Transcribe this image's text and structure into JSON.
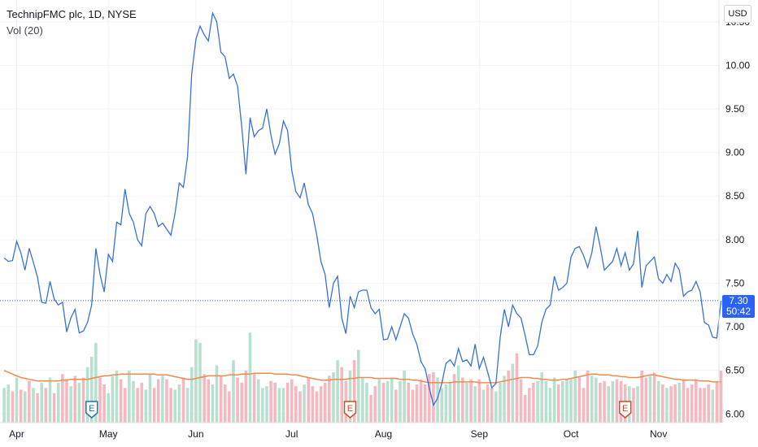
{
  "header": {
    "symbol_title": "TechnipFMC plc, 1D, NYSE",
    "volume_title": "Vol (20)",
    "currency": "USD"
  },
  "last_price": {
    "value": "7.30",
    "countdown": "50:42"
  },
  "colors": {
    "line": "#3a70d6",
    "volume_up": "#b8e0cf",
    "volume_down": "#f5b8c0",
    "volume_ma": "#f08a4b",
    "last_price": "#2962ff",
    "earnings_blue": "#1a73a8",
    "earnings_red": "#c94a2c"
  },
  "chart_data": {
    "type": "line",
    "title": "TechnipFMC plc, 1D, NYSE",
    "xlabel": "",
    "ylabel": "",
    "ylim": [
      5.9,
      10.75
    ],
    "y_ticks": [
      "10.50",
      "10.00",
      "9.50",
      "9.00",
      "8.50",
      "8.00",
      "7.50",
      "7.00",
      "6.50",
      "6.00"
    ],
    "x_ticks": [
      {
        "label": "Apr",
        "index": 3
      },
      {
        "label": "May",
        "index": 25
      },
      {
        "label": "Jun",
        "index": 46
      },
      {
        "label": "Jul",
        "index": 69
      },
      {
        "label": "Aug",
        "index": 91
      },
      {
        "label": "Sep",
        "index": 114
      },
      {
        "label": "Oct",
        "index": 136
      },
      {
        "label": "Nov",
        "index": 157
      }
    ],
    "x_range": [
      -1,
      171.5
    ],
    "series": [
      {
        "values": [
          7.79,
          7.75,
          7.76,
          7.98,
          7.85,
          7.65,
          7.9,
          7.74,
          7.57,
          7.28,
          7.27,
          7.52,
          7.32,
          7.25,
          7.28,
          6.94,
          7.1,
          7.2,
          6.93,
          6.95,
          7.05,
          7.25,
          7.9,
          7.6,
          7.4,
          7.83,
          7.75,
          8.2,
          8.17,
          8.58,
          8.3,
          8.2,
          8.0,
          7.93,
          8.3,
          8.38,
          8.3,
          8.15,
          8.19,
          8.12,
          8.05,
          8.3,
          8.65,
          8.6,
          8.95,
          9.9,
          10.3,
          10.45,
          10.35,
          10.28,
          10.6,
          10.5,
          10.15,
          10.1,
          9.85,
          9.9,
          9.76,
          9.3,
          8.75,
          9.4,
          9.18,
          9.25,
          9.28,
          9.5,
          9.2,
          8.98,
          9.1,
          9.36,
          9.25,
          8.8,
          8.55,
          8.48,
          8.65,
          8.4,
          8.3,
          8.05,
          7.75,
          7.6,
          7.22,
          7.5,
          7.58,
          7.1,
          6.92,
          7.35,
          7.22,
          7.4,
          7.42,
          7.42,
          7.22,
          7.15,
          7.2,
          6.85,
          6.86,
          7.0,
          6.85,
          7.0,
          7.15,
          7.1,
          6.92,
          6.8,
          6.6,
          6.52,
          6.3,
          6.1,
          6.18,
          6.35,
          6.58,
          6.62,
          6.55,
          6.75,
          6.6,
          6.62,
          6.55,
          6.8,
          6.52,
          6.65,
          6.48,
          6.3,
          6.35,
          6.88,
          7.2,
          7.0,
          7.25,
          7.15,
          7.1,
          6.9,
          6.68,
          6.68,
          6.78,
          7.05,
          7.2,
          7.25,
          7.58,
          7.42,
          7.45,
          7.5,
          7.8,
          7.9,
          7.92,
          7.82,
          7.68,
          7.85,
          8.15,
          7.92,
          7.65,
          7.7,
          7.75,
          7.9,
          7.7,
          7.85,
          7.65,
          7.72,
          8.1,
          7.45,
          7.7,
          7.75,
          7.8,
          7.55,
          7.5,
          7.6,
          7.52,
          7.73,
          7.65,
          7.35,
          7.4,
          7.42,
          7.52,
          7.4,
          7.05,
          7.02,
          6.88,
          6.87,
          7.3
        ]
      },
      {
        "name": "Vol (20)",
        "type": "bar",
        "up": [
          true,
          true,
          false,
          true,
          false,
          true,
          false,
          true,
          false,
          true,
          false,
          true,
          false,
          true,
          false,
          false,
          true,
          false,
          true,
          false,
          true,
          true,
          true,
          false,
          false,
          true,
          true,
          true,
          false,
          false,
          true,
          true,
          false,
          false,
          true,
          true,
          false,
          false,
          true,
          false,
          false,
          true,
          true,
          false,
          true,
          true,
          true,
          true,
          false,
          false,
          true,
          true,
          false,
          false,
          false,
          true,
          false,
          false,
          false,
          true,
          false,
          true,
          true,
          true,
          false,
          false,
          true,
          true,
          false,
          false,
          false,
          false,
          true,
          false,
          false,
          false,
          false,
          false,
          false,
          true,
          true,
          false,
          false,
          true,
          false,
          true,
          true,
          true,
          false,
          false,
          true,
          false,
          true,
          true,
          false,
          true,
          true,
          false,
          false,
          false,
          false,
          false,
          false,
          false,
          true,
          true,
          true,
          true,
          false,
          true,
          false,
          true,
          false,
          true,
          false,
          true,
          false,
          false,
          true,
          true,
          true,
          false,
          true,
          false,
          false,
          false,
          false,
          false,
          true,
          true,
          true,
          true,
          true,
          false,
          true,
          true,
          true,
          true,
          false,
          false,
          false,
          true,
          true,
          false,
          false,
          true,
          true,
          false,
          false,
          false,
          true,
          false,
          true,
          false,
          false,
          true,
          false,
          true,
          false,
          true,
          false,
          false,
          true,
          false,
          false,
          false,
          false,
          false,
          false,
          false,
          true
        ],
        "values": [
          2.0,
          2.2,
          1.8,
          2.6,
          1.9,
          1.8,
          2.4,
          2.0,
          1.7,
          2.3,
          2.0,
          2.6,
          1.7,
          2.3,
          2.8,
          2.5,
          2.1,
          2.7,
          2.3,
          2.6,
          3.2,
          3.8,
          4.6,
          2.6,
          2.2,
          1.7,
          2.7,
          3.0,
          2.5,
          2.0,
          3.0,
          2.4,
          2.0,
          2.3,
          1.9,
          2.8,
          2.0,
          2.5,
          2.7,
          2.5,
          2.0,
          1.9,
          2.2,
          2.6,
          2.0,
          3.2,
          4.8,
          4.6,
          2.8,
          2.5,
          2.2,
          3.3,
          2.7,
          2.2,
          1.8,
          3.6,
          2.6,
          2.3,
          3.0,
          5.2,
          2.8,
          2.5,
          2.0,
          2.1,
          2.4,
          2.3,
          2.0,
          2.0,
          2.3,
          2.5,
          2.1,
          1.8,
          2.2,
          2.6,
          2.1,
          1.8,
          2.1,
          2.3,
          2.7,
          2.9,
          3.6,
          3.2,
          2.4,
          3.0,
          3.6,
          4.2,
          2.6,
          2.3,
          1.6,
          2.1,
          2.5,
          2.3,
          2.4,
          2.6,
          1.9,
          2.4,
          3.0,
          2.3,
          1.9,
          2.2,
          2.5,
          2.2,
          2.8,
          2.9,
          2.6,
          2.0,
          2.2,
          2.3,
          2.8,
          3.3,
          2.6,
          2.3,
          2.5,
          2.1,
          2.5,
          1.9,
          2.2,
          2.0,
          1.8,
          2.3,
          2.7,
          3.0,
          3.4,
          4.0,
          2.5,
          1.6,
          2.0,
          2.3,
          2.4,
          2.9,
          2.4,
          2.0,
          2.6,
          2.2,
          2.4,
          2.5,
          2.5,
          3.0,
          2.6,
          2.0,
          3.0,
          2.7,
          2.6,
          2.3,
          2.4,
          2.1,
          2.4,
          2.5,
          2.4,
          2.2,
          2.1,
          2.0,
          2.1,
          3.0,
          2.6,
          2.7,
          2.9,
          2.4,
          2.2,
          2.0,
          2.1,
          2.2,
          2.3,
          2.5,
          2.0,
          2.2,
          2.5,
          2.0,
          2.0,
          2.2,
          1.9,
          2.4,
          3.0
        ]
      },
      {
        "name": "Vol (20) MA",
        "type": "line",
        "values": [
          3.0,
          2.9,
          2.8,
          2.7,
          2.6,
          2.55,
          2.5,
          2.45,
          2.4,
          2.4,
          2.4,
          2.4,
          2.4,
          2.4,
          2.45,
          2.45,
          2.5,
          2.5,
          2.5,
          2.5,
          2.5,
          2.55,
          2.6,
          2.65,
          2.7,
          2.7,
          2.75,
          2.75,
          2.8,
          2.8,
          2.8,
          2.8,
          2.8,
          2.8,
          2.8,
          2.8,
          2.8,
          2.75,
          2.75,
          2.75,
          2.7,
          2.65,
          2.6,
          2.55,
          2.5,
          2.5,
          2.55,
          2.6,
          2.65,
          2.7,
          2.7,
          2.7,
          2.7,
          2.7,
          2.75,
          2.75,
          2.75,
          2.8,
          2.8,
          2.8,
          2.85,
          2.85,
          2.85,
          2.85,
          2.85,
          2.8,
          2.8,
          2.8,
          2.8,
          2.75,
          2.75,
          2.7,
          2.65,
          2.6,
          2.55,
          2.5,
          2.45,
          2.45,
          2.45,
          2.5,
          2.5,
          2.5,
          2.5,
          2.55,
          2.55,
          2.6,
          2.6,
          2.6,
          2.6,
          2.55,
          2.55,
          2.55,
          2.55,
          2.55,
          2.55,
          2.5,
          2.5,
          2.5,
          2.45,
          2.45,
          2.4,
          2.35,
          2.3,
          2.3,
          2.3,
          2.3,
          2.3,
          2.3,
          2.35,
          2.35,
          2.35,
          2.35,
          2.35,
          2.35,
          2.3,
          2.3,
          2.3,
          2.3,
          2.3,
          2.35,
          2.4,
          2.45,
          2.5,
          2.55,
          2.6,
          2.6,
          2.6,
          2.55,
          2.55,
          2.5,
          2.5,
          2.45,
          2.45,
          2.45,
          2.5,
          2.5,
          2.55,
          2.6,
          2.65,
          2.7,
          2.75,
          2.8,
          2.8,
          2.75,
          2.75,
          2.75,
          2.7,
          2.7,
          2.65,
          2.65,
          2.6,
          2.6,
          2.6,
          2.65,
          2.7,
          2.75,
          2.75,
          2.7,
          2.65,
          2.6,
          2.55,
          2.5,
          2.5,
          2.45,
          2.45,
          2.45,
          2.45,
          2.4,
          2.4,
          2.4,
          2.35,
          2.35,
          2.35
        ]
      }
    ],
    "volume_max": 7.5,
    "earnings_markers": [
      {
        "label": "E",
        "index": 21,
        "color": "blue"
      },
      {
        "label": "E",
        "index": 83,
        "color": "red"
      },
      {
        "label": "E",
        "index": 149,
        "color": "red"
      }
    ],
    "grid": true,
    "legend": "top-left"
  }
}
